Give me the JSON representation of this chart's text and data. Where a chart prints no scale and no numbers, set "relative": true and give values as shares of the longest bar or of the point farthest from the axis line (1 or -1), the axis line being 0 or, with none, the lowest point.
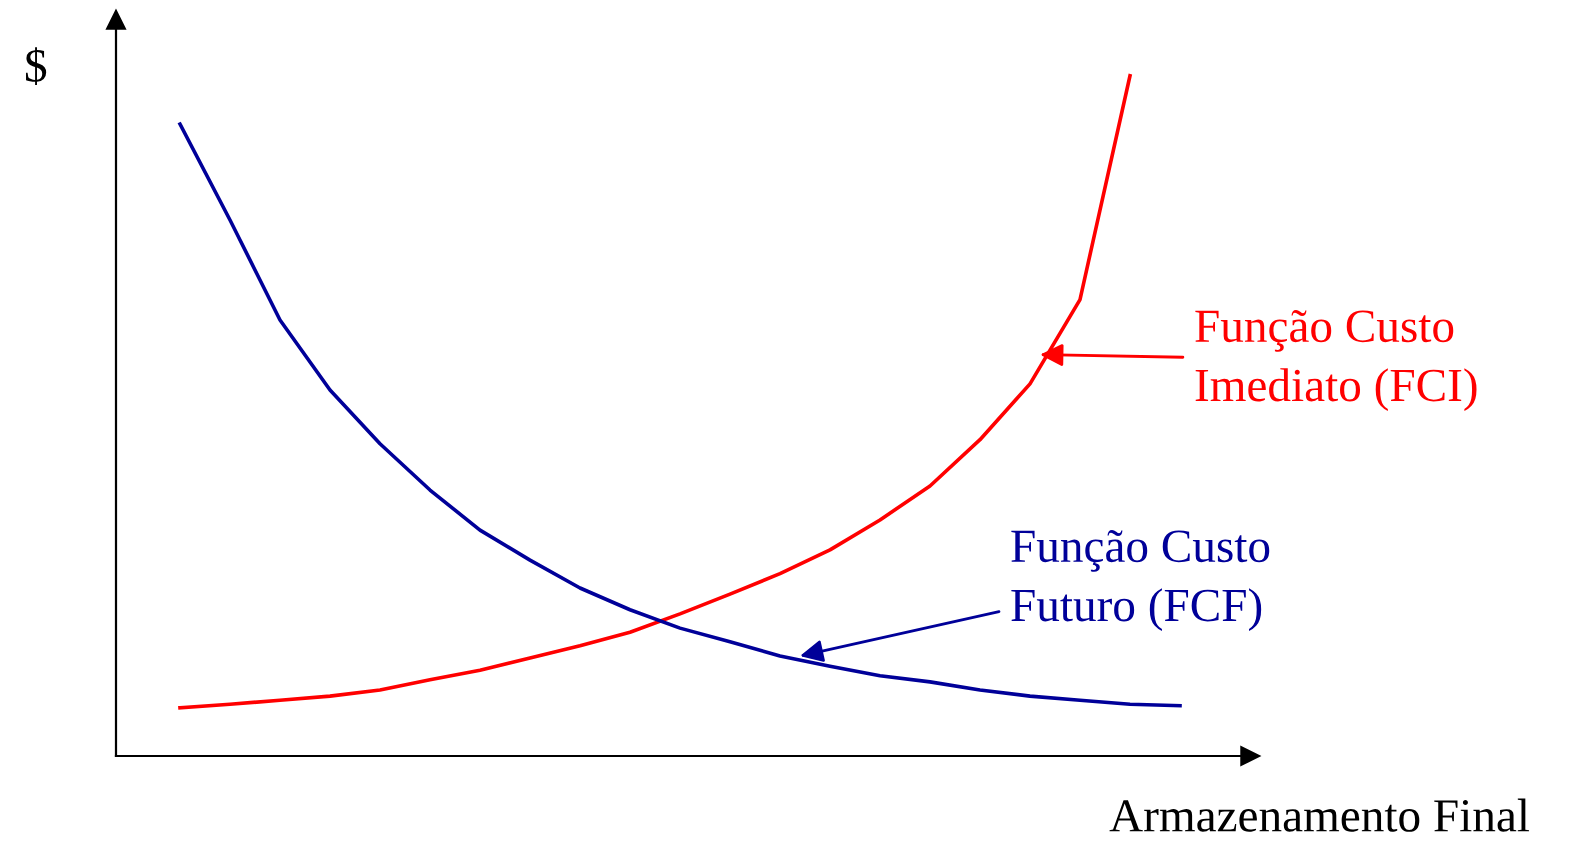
{
  "chart_data": {
    "type": "line",
    "relative": true,
    "ylabel": "$",
    "xlabel": "Armazenamento Final",
    "grid": false,
    "categories": [
      null,
      null,
      null,
      null,
      null,
      null,
      null,
      null,
      null,
      null,
      null,
      null,
      null,
      null,
      null,
      null,
      null,
      null,
      null,
      null,
      null
    ],
    "series": [
      {
        "name": "Função Custo\nImediato (FCI)",
        "color": "#ff0000",
        "values": [
          0.071,
          0.076,
          0.082,
          0.088,
          0.097,
          0.112,
          0.126,
          0.144,
          0.162,
          0.182,
          0.209,
          0.238,
          0.268,
          0.303,
          0.347,
          0.397,
          0.465,
          0.547,
          0.671,
          1.0,
          null
        ]
      },
      {
        "name": "Função Custo\nFuturo (FCF)",
        "color": "#000099",
        "values": [
          0.929,
          0.788,
          0.641,
          0.538,
          0.459,
          0.391,
          0.332,
          0.288,
          0.247,
          0.215,
          0.188,
          0.168,
          0.147,
          0.132,
          0.118,
          0.109,
          0.097,
          0.088,
          0.082,
          0.076,
          0.074
        ]
      }
    ]
  }
}
